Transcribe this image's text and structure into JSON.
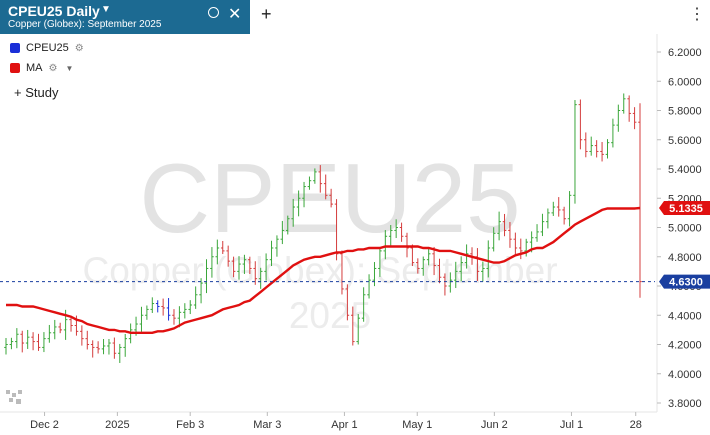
{
  "tab": {
    "symbol": "CPEU25 Daily",
    "subtitle": "Copper (Globex): September 2025"
  },
  "legend": [
    {
      "label": "CPEU25",
      "color": "#1a2fd8"
    },
    {
      "label": "MA",
      "color": "#e01010"
    }
  ],
  "study_label": "Study",
  "watermark": {
    "symbol": "CPEU25",
    "name": "Copper (Globex): September",
    "year": "2025"
  },
  "price_badges": {
    "ma": "5.1335",
    "last": "4.6300"
  },
  "colors": {
    "tab": "#1c6a92",
    "up": "#3aa63a",
    "down": "#d43c3c",
    "ma": "#e01010",
    "badge": "#e01010",
    "last_badge": "#1a3fa0"
  },
  "chart_data": {
    "type": "bar",
    "x_ticks": [
      "Dec 2",
      "2025",
      "Feb 3",
      "Mar 3",
      "Apr 1",
      "May 1",
      "Jun 2",
      "Jul 1",
      "28"
    ],
    "y_ticks": [
      "3.8000",
      "4.0000",
      "4.2000",
      "4.4000",
      "4.6000",
      "4.8000",
      "5.0000",
      "5.2000",
      "5.4000",
      "5.6000",
      "5.8000",
      "6.0000",
      "6.2000"
    ],
    "ylim": [
      3.75,
      6.27
    ],
    "last_price": 4.63,
    "ma_last": 5.1335,
    "close": [
      4.2,
      4.22,
      4.27,
      4.21,
      4.25,
      4.22,
      4.18,
      4.24,
      4.28,
      4.32,
      4.3,
      4.37,
      4.33,
      4.29,
      4.24,
      4.2,
      4.18,
      4.17,
      4.19,
      4.21,
      4.14,
      4.18,
      4.24,
      4.3,
      4.34,
      4.4,
      4.44,
      4.48,
      4.46,
      4.45,
      4.4,
      4.38,
      4.42,
      4.44,
      4.47,
      4.54,
      4.62,
      4.72,
      4.8,
      4.86,
      4.84,
      4.77,
      4.7,
      4.75,
      4.78,
      4.72,
      4.65,
      4.7,
      4.78,
      4.86,
      4.92,
      4.98,
      5.06,
      5.14,
      5.2,
      5.28,
      5.32,
      5.38,
      5.3,
      5.22,
      5.16,
      4.82,
      4.58,
      4.4,
      4.22,
      4.38,
      4.54,
      4.64,
      4.72,
      4.84,
      4.94,
      4.98,
      5.0,
      4.94,
      4.86,
      4.76,
      4.72,
      4.78,
      4.82,
      4.74,
      4.66,
      4.6,
      4.64,
      4.7,
      4.76,
      4.82,
      4.8,
      4.7,
      4.72,
      4.86,
      4.96,
      5.04,
      4.98,
      4.92,
      4.86,
      4.84,
      4.9,
      4.93,
      4.97,
      5.04,
      5.1,
      5.14,
      5.12,
      5.06,
      5.22,
      5.84,
      5.6,
      5.52,
      5.56,
      5.52,
      5.5,
      5.58,
      5.7,
      5.8,
      5.88,
      5.78,
      5.72,
      4.63
    ],
    "ma": [
      4.47,
      4.47,
      4.47,
      4.46,
      4.46,
      4.46,
      4.45,
      4.44,
      4.43,
      4.42,
      4.41,
      4.4,
      4.39,
      4.37,
      4.36,
      4.34,
      4.33,
      4.32,
      4.31,
      4.3,
      4.3,
      4.29,
      4.29,
      4.28,
      4.28,
      4.28,
      4.28,
      4.28,
      4.29,
      4.29,
      4.3,
      4.31,
      4.33,
      4.35,
      4.36,
      4.37,
      4.38,
      4.39,
      4.4,
      4.42,
      4.44,
      4.45,
      4.46,
      4.47,
      4.49,
      4.5,
      4.53,
      4.56,
      4.59,
      4.62,
      4.65,
      4.68,
      4.71,
      4.74,
      4.76,
      4.78,
      4.79,
      4.8,
      4.8,
      4.81,
      4.82,
      4.83,
      4.83,
      4.84,
      4.84,
      4.85,
      4.85,
      4.86,
      4.86,
      4.86,
      4.87,
      4.87,
      4.87,
      4.87,
      4.87,
      4.87,
      4.87,
      4.86,
      4.86,
      4.85,
      4.84,
      4.84,
      4.84,
      4.83,
      4.82,
      4.81,
      4.8,
      4.79,
      4.78,
      4.77,
      4.76,
      4.76,
      4.77,
      4.79,
      4.81,
      4.82,
      4.83,
      4.85,
      4.86,
      4.86,
      4.88,
      4.9,
      4.93,
      4.96,
      4.99,
      5.02,
      5.04,
      5.06,
      5.08,
      5.1,
      5.12,
      5.13,
      5.13,
      5.13,
      5.13,
      5.13,
      5.13,
      5.1335
    ]
  }
}
